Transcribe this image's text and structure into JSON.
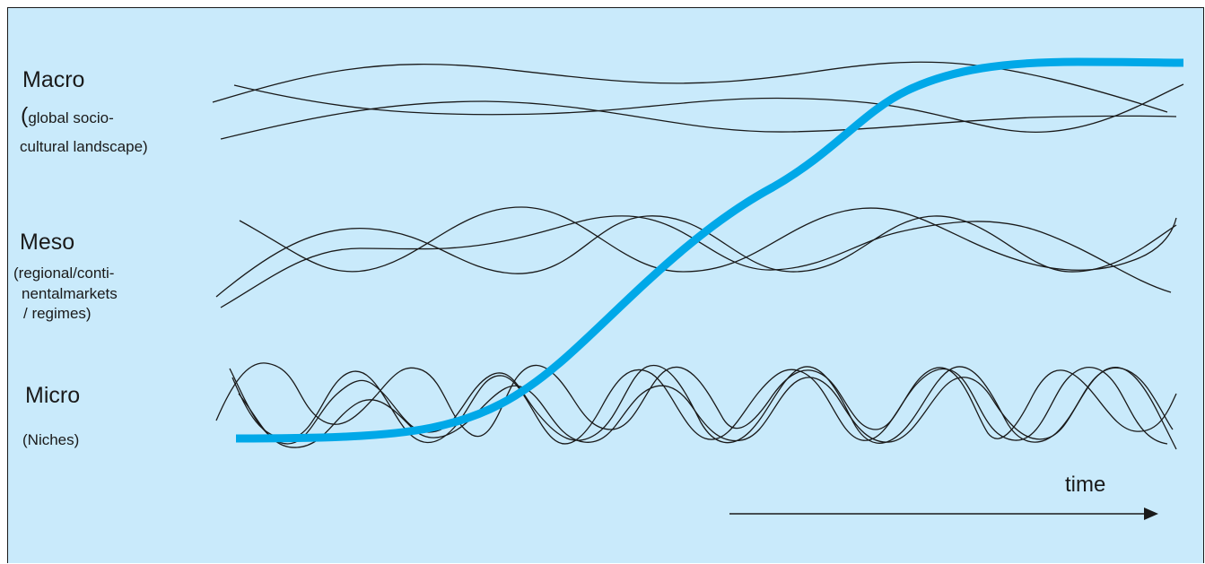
{
  "colors": {
    "background": "#c9eafb",
    "wave": "#1a1a1a",
    "transition": "#00a8e8",
    "text": "#1a1a1a"
  },
  "levels": {
    "macro": {
      "title": "Macro",
      "desc_paren": "(",
      "desc_line1": "global socio-",
      "desc_line2": "cultural landscape)"
    },
    "meso": {
      "title": "Meso",
      "desc_line1": "(regional/conti-",
      "desc_line2": "nentalmarkets",
      "desc_line3": " / regimes)"
    },
    "micro": {
      "title": "Micro",
      "desc_line1": "(Niches)"
    }
  },
  "time_axis": {
    "label": "time",
    "arrow": "arrow-right-icon"
  }
}
